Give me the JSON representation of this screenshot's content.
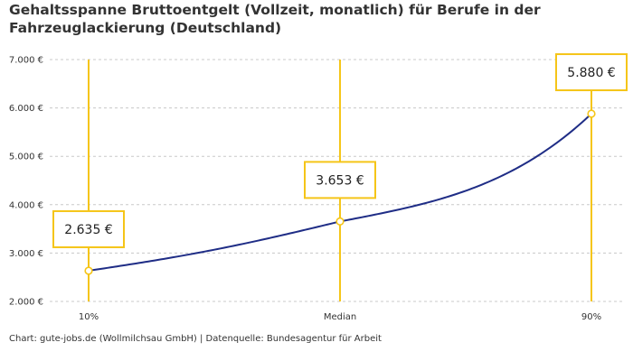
{
  "chart_data": {
    "type": "line",
    "title": "Gehaltsspanne Bruttoentgelt (Vollzeit, monatlich) für Berufe in der Fahrzeuglackierung (Deutschland)",
    "categories": [
      "10%",
      "Median",
      "90%"
    ],
    "values": [
      2635,
      3653,
      5880
    ],
    "data_labels": [
      "2.635 €",
      "3.653 €",
      "5.880 €"
    ],
    "ylim": [
      2000,
      7000
    ],
    "y_ticks": [
      {
        "value": 2000,
        "label": "2.000 €"
      },
      {
        "value": 3000,
        "label": "3.000 €"
      },
      {
        "value": 4000,
        "label": "4.000 €"
      },
      {
        "value": 5000,
        "label": "5.000 €"
      },
      {
        "value": 6000,
        "label": "6.000 €"
      },
      {
        "value": 7000,
        "label": "7.000 €"
      }
    ],
    "grid": true,
    "line_color": "#1f2d86",
    "accent_color": "#f5c518",
    "caption": "Chart: gute-jobs.de (Wollmilchsau GmbH) | Datenquelle: Bundesagentur für Arbeit"
  }
}
